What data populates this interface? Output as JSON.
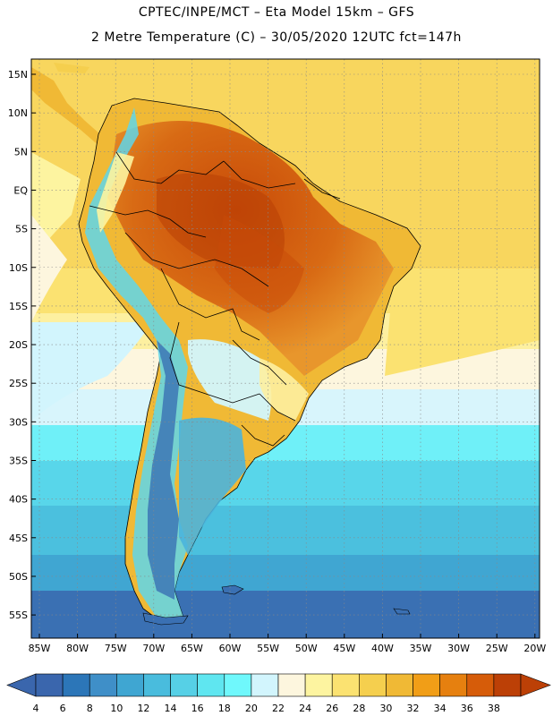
{
  "header": {
    "line1": "CPTEC/INPE/MCT –  Eta Model 15km – GFS",
    "line2": "2 Metre Temperature (C) – 30/05/2020 12UTC fct=147h"
  },
  "map": {
    "lat_labels": [
      "15N",
      "10N",
      "5N",
      "EQ",
      "5S",
      "10S",
      "15S",
      "20S",
      "25S",
      "30S",
      "35S",
      "40S",
      "45S",
      "50S",
      "55S"
    ],
    "lon_labels": [
      "85W",
      "80W",
      "75W",
      "70W",
      "65W",
      "60W",
      "55W",
      "50W",
      "45W",
      "40W",
      "35W",
      "30W",
      "25W",
      "20W"
    ]
  },
  "colorbar": {
    "labels": [
      "4",
      "6",
      "8",
      "10",
      "12",
      "14",
      "16",
      "18",
      "20",
      "22",
      "24",
      "26",
      "28",
      "30",
      "32",
      "34",
      "36",
      "38"
    ],
    "colors": [
      "#3a66ad",
      "#2c76b8",
      "#3f8fc8",
      "#3fa6d2",
      "#49bcdd",
      "#56d0e6",
      "#5fe6f0",
      "#6ff8fc",
      "#d2f5fd",
      "#fdf6de",
      "#fdf4a0",
      "#fbe271",
      "#f5cf4e",
      "#f0b935",
      "#f19e17",
      "#e6800f",
      "#d65c09",
      "#bc4006"
    ]
  }
}
